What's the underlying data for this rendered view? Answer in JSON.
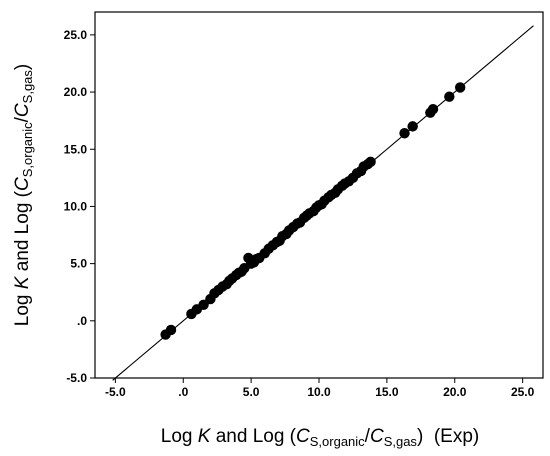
{
  "chart_data": {
    "type": "scatter",
    "xlabel": {
      "prefix": "Log ",
      "var": "K",
      "mid": " and Log (",
      "num_var": "C",
      "num_sub": "S,organic",
      "slash": "/",
      "den_var": "C",
      "den_sub": "S,gas",
      "suffix": ")  (Exp)"
    },
    "ylabel": {
      "prefix": "Log ",
      "var": "K",
      "mid": " and Log (",
      "num_var": "C",
      "num_sub": "S,organic",
      "slash": "/",
      "den_var": "C",
      "den_sub": "S,gas",
      "suffix": ")"
    },
    "xlim": [
      -6.5,
      26.5
    ],
    "ylim": [
      -5.0,
      27.0
    ],
    "xticks": [
      {
        "value": -5.0,
        "label": "-5.0"
      },
      {
        "value": 0.0,
        "label": ".0"
      },
      {
        "value": 5.0,
        "label": "5.0"
      },
      {
        "value": 10.0,
        "label": "10.0"
      },
      {
        "value": 15.0,
        "label": "15.0"
      },
      {
        "value": 20.0,
        "label": "20.0"
      },
      {
        "value": 25.0,
        "label": "25.0"
      }
    ],
    "yticks": [
      {
        "value": -5.0,
        "label": "-5.0"
      },
      {
        "value": 0.0,
        "label": ".0"
      },
      {
        "value": 5.0,
        "label": "5.0"
      },
      {
        "value": 10.0,
        "label": "10.0"
      },
      {
        "value": 15.0,
        "label": "15.0"
      },
      {
        "value": 20.0,
        "label": "20.0"
      },
      {
        "value": 25.0,
        "label": "25.0"
      }
    ],
    "grid": false,
    "legend": "none",
    "reference_line": {
      "x": [
        -5.2,
        25.8
      ],
      "y": [
        -5.2,
        25.8
      ],
      "color": "#000000"
    },
    "marker_color": "#000000",
    "series": [
      {
        "points": [
          [
            -1.3,
            -1.2
          ],
          [
            -0.9,
            -0.8
          ],
          [
            0.6,
            0.6
          ],
          [
            1.0,
            1.0
          ],
          [
            1.5,
            1.4
          ],
          [
            2.0,
            1.9
          ],
          [
            2.3,
            2.4
          ],
          [
            2.6,
            2.7
          ],
          [
            2.9,
            3.0
          ],
          [
            3.2,
            3.2
          ],
          [
            3.4,
            3.5
          ],
          [
            3.6,
            3.7
          ],
          [
            3.9,
            4.0
          ],
          [
            4.1,
            4.2
          ],
          [
            4.3,
            4.3
          ],
          [
            4.5,
            4.6
          ],
          [
            4.8,
            5.5
          ],
          [
            5.0,
            5.0
          ],
          [
            5.2,
            5.1
          ],
          [
            5.4,
            5.4
          ],
          [
            5.6,
            5.5
          ],
          [
            6.0,
            5.9
          ],
          [
            6.3,
            6.3
          ],
          [
            6.6,
            6.6
          ],
          [
            6.9,
            6.9
          ],
          [
            7.1,
            7.0
          ],
          [
            7.3,
            7.4
          ],
          [
            7.6,
            7.6
          ],
          [
            7.8,
            7.9
          ],
          [
            8.1,
            8.2
          ],
          [
            8.4,
            8.5
          ],
          [
            8.6,
            8.6
          ],
          [
            8.9,
            9.0
          ],
          [
            9.1,
            9.2
          ],
          [
            9.3,
            9.4
          ],
          [
            9.6,
            9.6
          ],
          [
            9.8,
            9.9
          ],
          [
            10.0,
            10.1
          ],
          [
            10.2,
            10.2
          ],
          [
            10.4,
            10.5
          ],
          [
            10.7,
            10.8
          ],
          [
            10.9,
            11.0
          ],
          [
            11.2,
            11.2
          ],
          [
            11.4,
            11.5
          ],
          [
            11.7,
            11.8
          ],
          [
            11.9,
            12.0
          ],
          [
            12.2,
            12.2
          ],
          [
            12.5,
            12.5
          ],
          [
            12.8,
            12.9
          ],
          [
            13.1,
            13.1
          ],
          [
            13.3,
            13.5
          ],
          [
            13.6,
            13.7
          ],
          [
            13.8,
            13.9
          ],
          [
            16.3,
            16.4
          ],
          [
            16.9,
            17.0
          ],
          [
            18.2,
            18.2
          ],
          [
            18.4,
            18.5
          ],
          [
            19.6,
            19.6
          ],
          [
            20.4,
            20.4
          ]
        ]
      }
    ]
  }
}
